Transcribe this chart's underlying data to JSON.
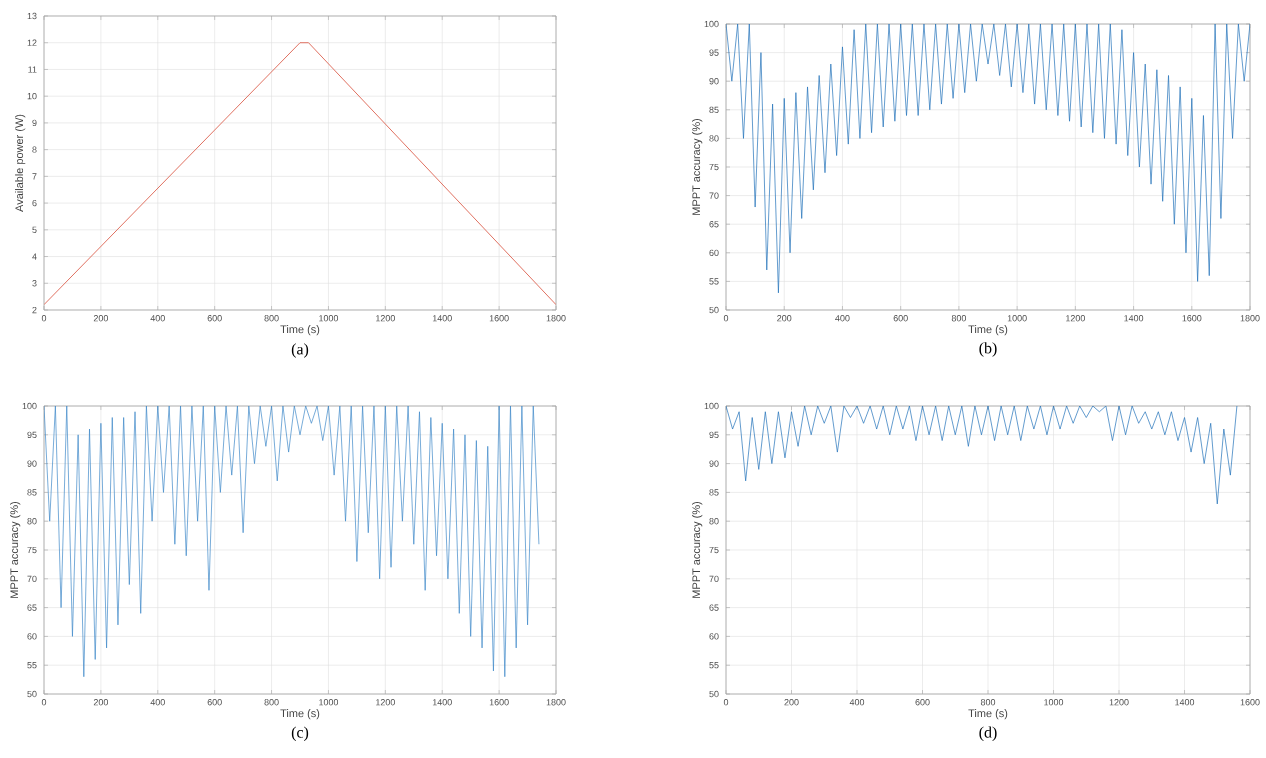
{
  "chart_data": [
    {
      "type": "line",
      "title": "(a)",
      "xlabel": "Time (s)",
      "ylabel": "Available power (W)",
      "xlim": [
        0,
        1800
      ],
      "ylim": [
        2,
        13
      ],
      "xticks": [
        0,
        200,
        400,
        600,
        800,
        1000,
        1200,
        1400,
        1600,
        1800
      ],
      "yticks": [
        2,
        3,
        4,
        5,
        6,
        7,
        8,
        9,
        10,
        11,
        12,
        13
      ],
      "grid": true,
      "series": [
        {
          "color": "#e07060",
          "x": [
            0,
            900,
            930,
            1800
          ],
          "values": [
            2.2,
            12,
            12,
            2.2
          ]
        }
      ]
    },
    {
      "type": "line",
      "title": "(b)",
      "xlabel": "Time (s)",
      "ylabel": "MPPT accuracy (%)",
      "xlim": [
        0,
        1800
      ],
      "ylim": [
        50,
        100
      ],
      "xticks": [
        0,
        200,
        400,
        600,
        800,
        1000,
        1200,
        1400,
        1600,
        1800
      ],
      "yticks": [
        50,
        55,
        60,
        65,
        70,
        75,
        80,
        85,
        90,
        95,
        100
      ],
      "grid": true,
      "series": [
        {
          "color": "#1f70b8",
          "x": [
            0,
            20,
            40,
            60,
            80,
            100,
            120,
            140,
            160,
            180,
            200,
            220,
            240,
            260,
            280,
            300,
            320,
            340,
            360,
            380,
            400,
            420,
            440,
            460,
            480,
            500,
            520,
            540,
            560,
            580,
            600,
            620,
            640,
            660,
            680,
            700,
            720,
            740,
            760,
            780,
            800,
            820,
            840,
            860,
            880,
            900,
            920,
            940,
            960,
            980,
            1000,
            1020,
            1040,
            1060,
            1080,
            1100,
            1120,
            1140,
            1160,
            1180,
            1200,
            1220,
            1240,
            1260,
            1280,
            1300,
            1320,
            1340,
            1360,
            1380,
            1400,
            1420,
            1440,
            1460,
            1480,
            1500,
            1520,
            1540,
            1560,
            1580,
            1600,
            1620,
            1640,
            1660,
            1680,
            1700,
            1720,
            1740,
            1760,
            1780,
            1800
          ],
          "values": [
            100,
            90,
            100,
            80,
            100,
            68,
            95,
            57,
            86,
            53,
            87,
            60,
            88,
            66,
            89,
            71,
            91,
            74,
            93,
            77,
            96,
            79,
            99,
            80,
            100,
            81,
            100,
            82,
            100,
            83,
            100,
            84,
            100,
            84,
            100,
            85,
            100,
            86,
            100,
            87,
            100,
            88,
            100,
            90,
            100,
            93,
            100,
            91,
            100,
            89,
            100,
            88,
            100,
            86,
            100,
            85,
            100,
            84,
            100,
            83,
            100,
            82,
            100,
            81,
            100,
            80,
            100,
            79,
            99,
            77,
            95,
            75,
            93,
            72,
            92,
            69,
            91,
            65,
            89,
            60,
            87,
            55,
            84,
            56,
            100,
            66,
            100,
            80,
            100,
            90,
            100
          ]
        }
      ]
    },
    {
      "type": "line",
      "title": "(c)",
      "xlabel": "Time (s)",
      "ylabel": "MPPT accuracy (%)",
      "xlim": [
        0,
        1800
      ],
      "ylim": [
        50,
        100
      ],
      "xticks": [
        0,
        200,
        400,
        600,
        800,
        1000,
        1200,
        1400,
        1600,
        1800
      ],
      "yticks": [
        50,
        55,
        60,
        65,
        70,
        75,
        80,
        85,
        90,
        95,
        100
      ],
      "grid": true,
      "series": [
        {
          "color": "#3d88c8",
          "x": [
            0,
            20,
            40,
            60,
            80,
            100,
            120,
            140,
            160,
            180,
            200,
            220,
            240,
            260,
            280,
            300,
            320,
            340,
            360,
            380,
            400,
            420,
            440,
            460,
            480,
            500,
            520,
            540,
            560,
            580,
            600,
            620,
            640,
            660,
            680,
            700,
            720,
            740,
            760,
            780,
            800,
            820,
            840,
            860,
            880,
            900,
            920,
            940,
            960,
            980,
            1000,
            1020,
            1040,
            1060,
            1080,
            1100,
            1120,
            1140,
            1160,
            1180,
            1200,
            1220,
            1240,
            1260,
            1280,
            1300,
            1320,
            1340,
            1360,
            1380,
            1400,
            1420,
            1440,
            1460,
            1480,
            1500,
            1520,
            1540,
            1560,
            1580,
            1600,
            1620,
            1640,
            1660,
            1680,
            1700,
            1720,
            1740
          ],
          "values": [
            100,
            80,
            100,
            65,
            100,
            60,
            95,
            53,
            96,
            56,
            97,
            58,
            98,
            62,
            98,
            69,
            99,
            64,
            100,
            80,
            100,
            85,
            100,
            76,
            100,
            74,
            100,
            80,
            100,
            68,
            100,
            85,
            100,
            88,
            100,
            78,
            100,
            90,
            100,
            93,
            100,
            87,
            100,
            92,
            100,
            95,
            100,
            97,
            100,
            94,
            100,
            88,
            100,
            80,
            100,
            73,
            100,
            78,
            100,
            70,
            100,
            72,
            100,
            80,
            100,
            76,
            99,
            68,
            98,
            74,
            97,
            70,
            96,
            64,
            95,
            60,
            94,
            58,
            93,
            54,
            100,
            53,
            100,
            58,
            100,
            62,
            100,
            76
          ]
        }
      ]
    },
    {
      "type": "line",
      "title": "(d)",
      "xlabel": "Time (s)",
      "ylabel": "MPPT accuracy (%)",
      "xlim": [
        0,
        1600
      ],
      "ylim": [
        50,
        100
      ],
      "xticks": [
        0,
        200,
        400,
        600,
        800,
        1000,
        1200,
        1400,
        1600
      ],
      "yticks": [
        50,
        55,
        60,
        65,
        70,
        75,
        80,
        85,
        90,
        95,
        100
      ],
      "grid": true,
      "series": [
        {
          "color": "#1f70b8",
          "x": [
            0,
            20,
            40,
            60,
            80,
            100,
            120,
            140,
            160,
            180,
            200,
            220,
            240,
            260,
            280,
            300,
            320,
            340,
            360,
            380,
            400,
            420,
            440,
            460,
            480,
            500,
            520,
            540,
            560,
            580,
            600,
            620,
            640,
            660,
            680,
            700,
            720,
            740,
            760,
            780,
            800,
            820,
            840,
            860,
            880,
            900,
            920,
            940,
            960,
            980,
            1000,
            1020,
            1040,
            1060,
            1080,
            1100,
            1120,
            1140,
            1160,
            1180,
            1200,
            1220,
            1240,
            1260,
            1280,
            1300,
            1320,
            1340,
            1360,
            1380,
            1400,
            1420,
            1440,
            1460,
            1480,
            1500,
            1520,
            1540,
            1560
          ],
          "values": [
            100,
            96,
            99,
            87,
            98,
            89,
            99,
            90,
            99,
            91,
            99,
            93,
            100,
            95,
            100,
            97,
            100,
            92,
            100,
            98,
            100,
            97,
            100,
            96,
            100,
            95,
            100,
            96,
            100,
            94,
            100,
            95,
            100,
            94,
            100,
            95,
            100,
            93,
            100,
            95,
            100,
            94,
            100,
            95,
            100,
            94,
            100,
            96,
            100,
            95,
            100,
            96,
            100,
            97,
            100,
            98,
            100,
            99,
            100,
            94,
            100,
            95,
            100,
            97,
            99,
            96,
            99,
            95,
            99,
            94,
            98,
            92,
            98,
            90,
            97,
            83,
            96,
            88,
            100
          ]
        }
      ]
    }
  ]
}
